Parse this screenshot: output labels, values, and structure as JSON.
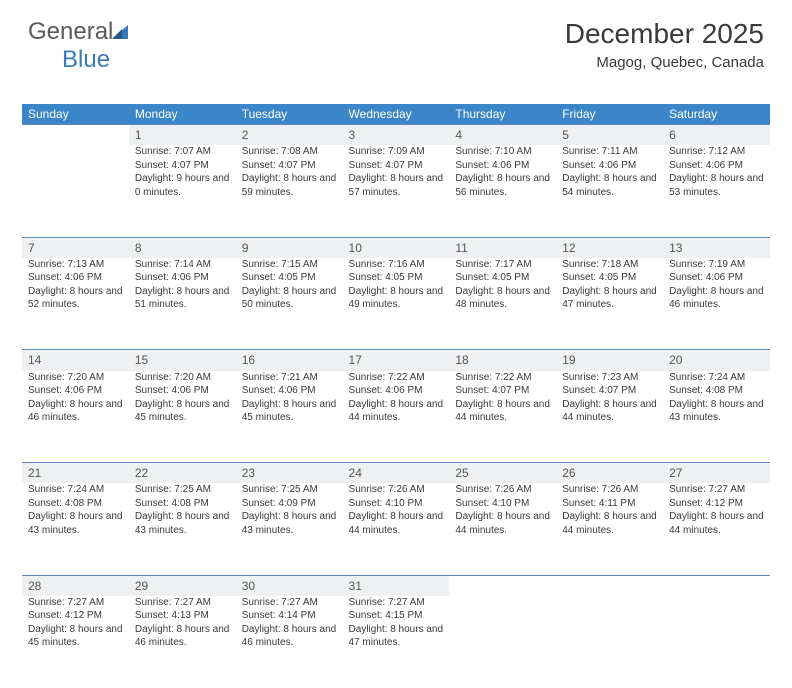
{
  "brand": {
    "part1": "General",
    "part2": "Blue"
  },
  "title": "December 2025",
  "location": "Magog, Quebec, Canada",
  "colors": {
    "header_bg": "#3a86c8",
    "header_text": "#ffffff",
    "daynum_bg": "#eef0f1",
    "border": "#5a8abb",
    "text": "#3a3a3a",
    "logo_blue": "#3a7ab8"
  },
  "weekdays": [
    "Sunday",
    "Monday",
    "Tuesday",
    "Wednesday",
    "Thursday",
    "Friday",
    "Saturday"
  ],
  "weeks": [
    {
      "nums": [
        "",
        "1",
        "2",
        "3",
        "4",
        "5",
        "6"
      ],
      "cells": [
        null,
        {
          "sr": "Sunrise: 7:07 AM",
          "ss": "Sunset: 4:07 PM",
          "dl": "Daylight: 9 hours and 0 minutes."
        },
        {
          "sr": "Sunrise: 7:08 AM",
          "ss": "Sunset: 4:07 PM",
          "dl": "Daylight: 8 hours and 59 minutes."
        },
        {
          "sr": "Sunrise: 7:09 AM",
          "ss": "Sunset: 4:07 PM",
          "dl": "Daylight: 8 hours and 57 minutes."
        },
        {
          "sr": "Sunrise: 7:10 AM",
          "ss": "Sunset: 4:06 PM",
          "dl": "Daylight: 8 hours and 56 minutes."
        },
        {
          "sr": "Sunrise: 7:11 AM",
          "ss": "Sunset: 4:06 PM",
          "dl": "Daylight: 8 hours and 54 minutes."
        },
        {
          "sr": "Sunrise: 7:12 AM",
          "ss": "Sunset: 4:06 PM",
          "dl": "Daylight: 8 hours and 53 minutes."
        }
      ]
    },
    {
      "nums": [
        "7",
        "8",
        "9",
        "10",
        "11",
        "12",
        "13"
      ],
      "cells": [
        {
          "sr": "Sunrise: 7:13 AM",
          "ss": "Sunset: 4:06 PM",
          "dl": "Daylight: 8 hours and 52 minutes."
        },
        {
          "sr": "Sunrise: 7:14 AM",
          "ss": "Sunset: 4:06 PM",
          "dl": "Daylight: 8 hours and 51 minutes."
        },
        {
          "sr": "Sunrise: 7:15 AM",
          "ss": "Sunset: 4:05 PM",
          "dl": "Daylight: 8 hours and 50 minutes."
        },
        {
          "sr": "Sunrise: 7:16 AM",
          "ss": "Sunset: 4:05 PM",
          "dl": "Daylight: 8 hours and 49 minutes."
        },
        {
          "sr": "Sunrise: 7:17 AM",
          "ss": "Sunset: 4:05 PM",
          "dl": "Daylight: 8 hours and 48 minutes."
        },
        {
          "sr": "Sunrise: 7:18 AM",
          "ss": "Sunset: 4:05 PM",
          "dl": "Daylight: 8 hours and 47 minutes."
        },
        {
          "sr": "Sunrise: 7:19 AM",
          "ss": "Sunset: 4:06 PM",
          "dl": "Daylight: 8 hours and 46 minutes."
        }
      ]
    },
    {
      "nums": [
        "14",
        "15",
        "16",
        "17",
        "18",
        "19",
        "20"
      ],
      "cells": [
        {
          "sr": "Sunrise: 7:20 AM",
          "ss": "Sunset: 4:06 PM",
          "dl": "Daylight: 8 hours and 46 minutes."
        },
        {
          "sr": "Sunrise: 7:20 AM",
          "ss": "Sunset: 4:06 PM",
          "dl": "Daylight: 8 hours and 45 minutes."
        },
        {
          "sr": "Sunrise: 7:21 AM",
          "ss": "Sunset: 4:06 PM",
          "dl": "Daylight: 8 hours and 45 minutes."
        },
        {
          "sr": "Sunrise: 7:22 AM",
          "ss": "Sunset: 4:06 PM",
          "dl": "Daylight: 8 hours and 44 minutes."
        },
        {
          "sr": "Sunrise: 7:22 AM",
          "ss": "Sunset: 4:07 PM",
          "dl": "Daylight: 8 hours and 44 minutes."
        },
        {
          "sr": "Sunrise: 7:23 AM",
          "ss": "Sunset: 4:07 PM",
          "dl": "Daylight: 8 hours and 44 minutes."
        },
        {
          "sr": "Sunrise: 7:24 AM",
          "ss": "Sunset: 4:08 PM",
          "dl": "Daylight: 8 hours and 43 minutes."
        }
      ]
    },
    {
      "nums": [
        "21",
        "22",
        "23",
        "24",
        "25",
        "26",
        "27"
      ],
      "cells": [
        {
          "sr": "Sunrise: 7:24 AM",
          "ss": "Sunset: 4:08 PM",
          "dl": "Daylight: 8 hours and 43 minutes."
        },
        {
          "sr": "Sunrise: 7:25 AM",
          "ss": "Sunset: 4:08 PM",
          "dl": "Daylight: 8 hours and 43 minutes."
        },
        {
          "sr": "Sunrise: 7:25 AM",
          "ss": "Sunset: 4:09 PM",
          "dl": "Daylight: 8 hours and 43 minutes."
        },
        {
          "sr": "Sunrise: 7:26 AM",
          "ss": "Sunset: 4:10 PM",
          "dl": "Daylight: 8 hours and 44 minutes."
        },
        {
          "sr": "Sunrise: 7:26 AM",
          "ss": "Sunset: 4:10 PM",
          "dl": "Daylight: 8 hours and 44 minutes."
        },
        {
          "sr": "Sunrise: 7:26 AM",
          "ss": "Sunset: 4:11 PM",
          "dl": "Daylight: 8 hours and 44 minutes."
        },
        {
          "sr": "Sunrise: 7:27 AM",
          "ss": "Sunset: 4:12 PM",
          "dl": "Daylight: 8 hours and 44 minutes."
        }
      ]
    },
    {
      "nums": [
        "28",
        "29",
        "30",
        "31",
        "",
        "",
        ""
      ],
      "cells": [
        {
          "sr": "Sunrise: 7:27 AM",
          "ss": "Sunset: 4:12 PM",
          "dl": "Daylight: 8 hours and 45 minutes."
        },
        {
          "sr": "Sunrise: 7:27 AM",
          "ss": "Sunset: 4:13 PM",
          "dl": "Daylight: 8 hours and 46 minutes."
        },
        {
          "sr": "Sunrise: 7:27 AM",
          "ss": "Sunset: 4:14 PM",
          "dl": "Daylight: 8 hours and 46 minutes."
        },
        {
          "sr": "Sunrise: 7:27 AM",
          "ss": "Sunset: 4:15 PM",
          "dl": "Daylight: 8 hours and 47 minutes."
        },
        null,
        null,
        null
      ]
    }
  ]
}
